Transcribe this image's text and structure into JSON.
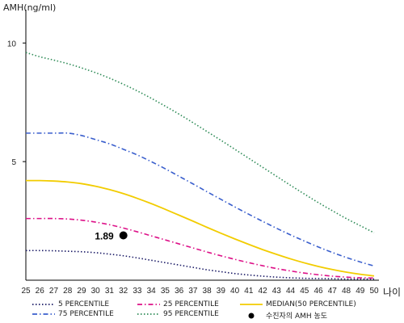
{
  "chart_data": {
    "type": "line",
    "ylabel": "AMH(ng/ml)",
    "xlabel": "나이",
    "x": [
      25,
      26,
      27,
      28,
      29,
      30,
      31,
      32,
      33,
      34,
      35,
      36,
      37,
      38,
      39,
      40,
      41,
      42,
      43,
      44,
      45,
      46,
      47,
      48,
      49,
      50
    ],
    "ylim": [
      0,
      11.2
    ],
    "yticks": [
      5,
      10
    ],
    "grid": false,
    "legend_position": "bottom",
    "series": [
      {
        "name": "5 PERCENTILE",
        "color": "#1a1a66",
        "dash": "dotted",
        "values": [
          1.25,
          1.25,
          1.24,
          1.22,
          1.2,
          1.16,
          1.1,
          1.03,
          0.94,
          0.84,
          0.74,
          0.64,
          0.54,
          0.44,
          0.36,
          0.28,
          0.22,
          0.17,
          0.13,
          0.1,
          0.08,
          0.07,
          0.06,
          0.05,
          0.05,
          0.05
        ]
      },
      {
        "name": "25 PERCENTILE",
        "color": "#dd1188",
        "dash": "dashdot",
        "values": [
          2.6,
          2.6,
          2.6,
          2.58,
          2.53,
          2.45,
          2.34,
          2.2,
          2.04,
          1.87,
          1.7,
          1.53,
          1.36,
          1.19,
          1.03,
          0.88,
          0.74,
          0.61,
          0.49,
          0.39,
          0.3,
          0.23,
          0.17,
          0.13,
          0.1,
          0.09
        ]
      },
      {
        "name": "MEDIAN(50 PERCENTILE)",
        "color": "#f2cc00",
        "dash": "solid",
        "values": [
          4.2,
          4.2,
          4.18,
          4.14,
          4.07,
          3.96,
          3.82,
          3.65,
          3.45,
          3.23,
          2.99,
          2.74,
          2.49,
          2.23,
          1.98,
          1.74,
          1.51,
          1.29,
          1.09,
          0.9,
          0.73,
          0.58,
          0.45,
          0.34,
          0.25,
          0.18
        ]
      },
      {
        "name": "75 PERCENTILE",
        "color": "#3a5fcd",
        "dash": "dashdot",
        "values": [
          6.2,
          6.2,
          6.2,
          6.2,
          6.1,
          5.93,
          5.75,
          5.52,
          5.28,
          5.0,
          4.7,
          4.38,
          4.06,
          3.73,
          3.41,
          3.09,
          2.78,
          2.48,
          2.19,
          1.91,
          1.65,
          1.4,
          1.17,
          0.96,
          0.77,
          0.6
        ]
      },
      {
        "name": "95 PERCENTILE",
        "color": "#2e8b57",
        "dash": "dotted",
        "values": [
          9.6,
          9.42,
          9.28,
          9.13,
          8.95,
          8.75,
          8.52,
          8.26,
          7.98,
          7.67,
          7.34,
          7.0,
          6.64,
          6.27,
          5.9,
          5.52,
          5.14,
          4.76,
          4.38,
          4.0,
          3.63,
          3.27,
          2.93,
          2.6,
          2.3,
          2.0
        ]
      }
    ],
    "marker": {
      "name": "수진자의 AMH 농도",
      "x": 32,
      "y": 1.89,
      "label": "1.89",
      "color": "#000000"
    }
  }
}
